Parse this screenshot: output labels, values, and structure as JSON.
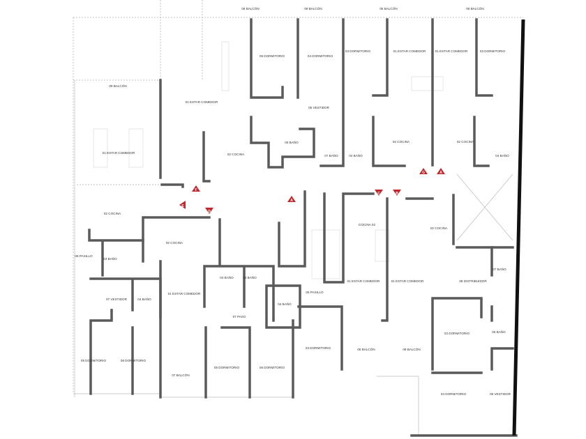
{
  "plan": {
    "colors": {
      "wall": "#5a5a5a",
      "facade": "#111111",
      "marker": "#c0272d"
    },
    "rooms": [
      {
        "label": "06 BALCÓN"
      },
      {
        "label": "09 BALCÓN"
      },
      {
        "label": "05 BALCÓN"
      },
      {
        "label": "05 BALCÓN"
      },
      {
        "label": "05 DORMITORIO"
      },
      {
        "label": "04 DORMITORIO"
      },
      {
        "label": "03 DORMITORIO"
      },
      {
        "label": "01 ESTAR COMEDOR"
      },
      {
        "label": "01 ESTAR COMEDOR"
      },
      {
        "label": "03 DORMITORIO"
      },
      {
        "label": "09 BALCÓN"
      },
      {
        "label": "01 ESTAR COMEDOR"
      },
      {
        "label": "05 VESTIDOR"
      },
      {
        "label": "01 ESTAR COMEDOR"
      },
      {
        "label": "02 COCINA"
      },
      {
        "label": "06 BAÑO"
      },
      {
        "label": "07 BAÑO"
      },
      {
        "label": "04 BAÑO"
      },
      {
        "label": "02 COCINA"
      },
      {
        "label": "02 COCINA"
      },
      {
        "label": "04 BAÑO"
      },
      {
        "label": "02 COCINA"
      },
      {
        "label": "02 COCINA"
      },
      {
        "label": "08 PASILLO"
      },
      {
        "label": "03 BAÑO"
      },
      {
        "label": "07 VESTIDOR"
      },
      {
        "label": "04 BAÑO"
      },
      {
        "label": "01 ESTAR COMEDOR"
      },
      {
        "label": "03 BAÑO"
      },
      {
        "label": "04 BAÑO"
      },
      {
        "label": "07 PASO"
      },
      {
        "label": "04 BAÑO"
      },
      {
        "label": "05 PASILLO"
      },
      {
        "label": "05 DORMITORIO"
      },
      {
        "label": "06 DORMITORIO"
      },
      {
        "label": "07 BALCÓN"
      },
      {
        "label": "05 DORMITORIO"
      },
      {
        "label": "06 DORMITORIO"
      },
      {
        "label": "03 DORMITORIO"
      },
      {
        "label": "COCINA 02"
      },
      {
        "label": "02 COCINA"
      },
      {
        "label": "01 ESTAR COMEDOR"
      },
      {
        "label": "01 ESTAR COMEDOR"
      },
      {
        "label": "08 DISTRIBUIDOR"
      },
      {
        "label": "07 BAÑO"
      },
      {
        "label": "06 BALCÓN"
      },
      {
        "label": "09 BALCÓN"
      },
      {
        "label": "03 DORMITORIO"
      },
      {
        "label": "06 BAÑO"
      },
      {
        "label": "04 DORMITORIO"
      },
      {
        "label": "05 VESTIDOR"
      }
    ],
    "markers": [
      {
        "letter": "F"
      },
      {
        "letter": "E"
      },
      {
        "letter": "D"
      },
      {
        "letter": "A"
      },
      {
        "letter": "C"
      },
      {
        "letter": "B"
      },
      {
        "letter": "G"
      },
      {
        "letter": "A"
      }
    ]
  }
}
